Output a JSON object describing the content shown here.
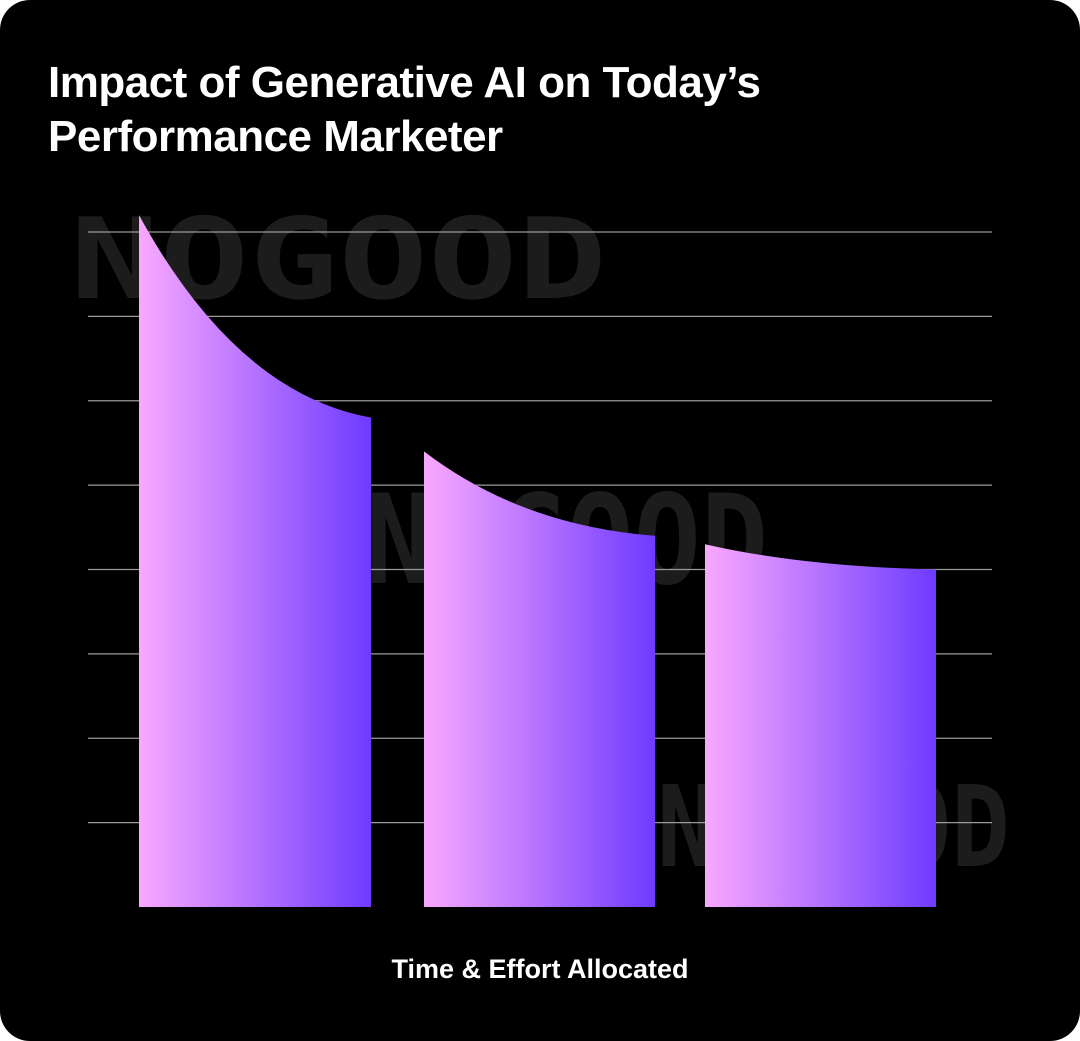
{
  "chart_data": {
    "type": "bar",
    "title": "Impact of Generative AI on Today’s Performance Marketer",
    "xlabel": "Time & Effort Allocated",
    "ylabel": "",
    "categories": [
      "",
      "",
      ""
    ],
    "series": [
      {
        "start_values": [
          8.2,
          5.4,
          4.3
        ],
        "end_values": [
          5.8,
          4.4,
          4.0
        ]
      }
    ],
    "ylim": [
      0,
      8
    ],
    "grid": true,
    "gridline_count": 8,
    "tick_labels": false,
    "bar_gradient": [
      "#f9a8ff",
      "#6e3bff"
    ],
    "colors": {
      "background": "#000000",
      "grid": "#9a9a9a",
      "watermark": "#1c1c1c"
    }
  },
  "watermark": "NOGOOD"
}
